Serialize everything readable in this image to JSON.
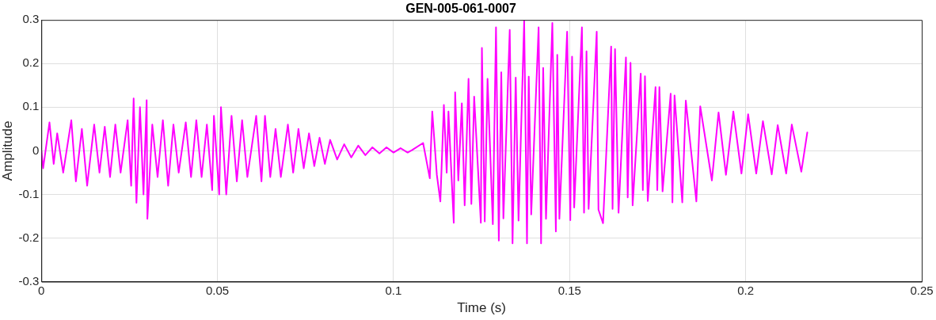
{
  "chart_data": {
    "type": "line",
    "title": "GEN-005-061-0007",
    "xlabel": "Time (s)",
    "ylabel": "Amplitude",
    "xlim": [
      0,
      0.25
    ],
    "xticks": [
      0,
      0.05,
      0.1,
      0.15,
      0.2,
      0.25
    ],
    "ylim": [
      -0.3,
      0.3
    ],
    "yticks": [
      -0.3,
      -0.2,
      -0.1,
      0,
      0.1,
      0.2,
      0.3
    ],
    "grid": true,
    "legend": false,
    "marker": "none",
    "line_style": "solid",
    "series": [
      {
        "color": "#ff00ff",
        "x": [
          0,
          0.0005,
          0.0023,
          0.0035,
          0.0045,
          0.0062,
          0.0085,
          0.0098,
          0.0115,
          0.013,
          0.015,
          0.0165,
          0.018,
          0.0195,
          0.021,
          0.0225,
          0.0245,
          0.0255,
          0.0262,
          0.027,
          0.028,
          0.029,
          0.0299,
          0.0301,
          0.0315,
          0.033,
          0.0345,
          0.036,
          0.0375,
          0.039,
          0.041,
          0.0425,
          0.044,
          0.0455,
          0.047,
          0.0485,
          0.049,
          0.0505,
          0.051,
          0.0525,
          0.054,
          0.0555,
          0.057,
          0.0585,
          0.061,
          0.0625,
          0.0635,
          0.065,
          0.0665,
          0.068,
          0.07,
          0.0715,
          0.073,
          0.0745,
          0.076,
          0.0775,
          0.079,
          0.0805,
          0.082,
          0.084,
          0.086,
          0.088,
          0.09,
          0.092,
          0.094,
          0.096,
          0.098,
          0.1,
          0.102,
          0.104,
          0.1053,
          0.1084,
          0.1103,
          0.111,
          0.1123,
          0.1133,
          0.1143,
          0.1151,
          0.1156,
          0.1171,
          0.1175,
          0.1184,
          0.1194,
          0.1202,
          0.1213,
          0.1221,
          0.1229,
          0.1248,
          0.1251,
          0.1259,
          0.1267,
          0.1282,
          0.1291,
          0.1299,
          0.1306,
          0.1312,
          0.133,
          0.1338,
          0.1347,
          0.1355,
          0.1371,
          0.1379,
          0.1384,
          0.1391,
          0.1412,
          0.1419,
          0.1425,
          0.1433,
          0.1451,
          0.1461,
          0.1465,
          0.1471,
          0.1493,
          0.1502,
          0.1507,
          0.1513,
          0.1535,
          0.1541,
          0.1548,
          0.1554,
          0.1577,
          0.1582,
          0.1595,
          0.1618,
          0.1622,
          0.1629,
          0.1639,
          0.166,
          0.1665,
          0.1673,
          0.1679,
          0.1702,
          0.1708,
          0.1714,
          0.1722,
          0.1744,
          0.1749,
          0.1755,
          0.1764,
          0.1787,
          0.1792,
          0.1798,
          0.182,
          0.183,
          0.186,
          0.1871,
          0.1904,
          0.1923,
          0.1944,
          0.1965,
          0.1988,
          0.2007,
          0.203,
          0.2049,
          0.2074,
          0.2091,
          0.2115,
          0.2131,
          0.2158,
          0.2175
        ],
        "values": [
          0,
          -0.04,
          0.065,
          -0.03,
          0.04,
          -0.05,
          0.07,
          -0.07,
          0.05,
          -0.08,
          0.06,
          -0.05,
          0.055,
          -0.06,
          0.06,
          -0.05,
          0.07,
          -0.08,
          0.12,
          -0.119,
          0.1,
          -0.1,
          0.116,
          -0.156,
          0.06,
          -0.06,
          0.07,
          -0.08,
          0.06,
          -0.05,
          0.065,
          -0.06,
          0.07,
          -0.06,
          0.06,
          -0.09,
          0.08,
          -0.1,
          0.1,
          -0.1,
          0.08,
          -0.07,
          0.07,
          -0.06,
          0.08,
          -0.07,
          0.08,
          -0.06,
          0.05,
          -0.06,
          0.06,
          -0.05,
          0.05,
          -0.04,
          0.04,
          -0.035,
          0.03,
          -0.03,
          0.025,
          -0.02,
          0.015,
          -0.015,
          0.012,
          -0.01,
          0.008,
          -0.006,
          0.008,
          -0.004,
          0.006,
          -0.004,
          0.002,
          0.018,
          -0.063,
          0.09,
          -0.055,
          -0.116,
          0.105,
          -0.05,
          0.09,
          -0.165,
          0.134,
          -0.068,
          0.109,
          -0.125,
          0.165,
          -0.122,
          0.124,
          -0.165,
          0.236,
          -0.162,
          0.165,
          -0.168,
          0.283,
          -0.206,
          0.18,
          -0.155,
          0.277,
          -0.212,
          0.168,
          -0.16,
          0.299,
          -0.212,
          0.17,
          -0.146,
          0.283,
          -0.212,
          0.19,
          -0.156,
          0.293,
          -0.185,
          0.22,
          -0.156,
          0.273,
          -0.159,
          0.216,
          -0.13,
          0.283,
          -0.142,
          0.228,
          -0.133,
          0.273,
          -0.135,
          -0.166,
          0.239,
          -0.133,
          0.233,
          -0.142,
          0.214,
          -0.107,
          0.202,
          -0.125,
          0.177,
          -0.09,
          0.171,
          -0.115,
          0.146,
          -0.09,
          0.146,
          -0.093,
          0.131,
          -0.118,
          0.127,
          -0.118,
          0.115,
          -0.116,
          0.102,
          -0.068,
          0.088,
          -0.055,
          0.09,
          -0.052,
          0.084,
          -0.052,
          0.068,
          -0.054,
          0.059,
          -0.052,
          0.06,
          -0.048,
          0.042
        ]
      }
    ]
  }
}
